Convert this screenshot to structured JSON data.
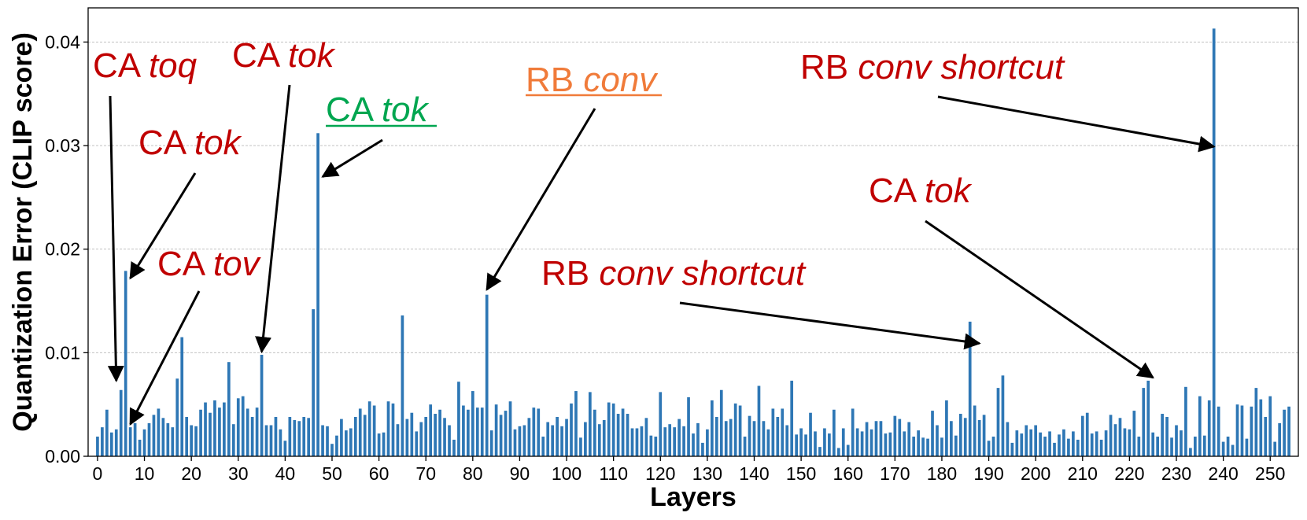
{
  "chart_data": {
    "type": "bar",
    "title": "",
    "xlabel": "Layers",
    "ylabel": "Quantization Error (CLIP score)",
    "xlim": [
      -2,
      256
    ],
    "ylim": [
      0,
      0.0433
    ],
    "xticks": [
      0,
      10,
      20,
      30,
      40,
      50,
      60,
      70,
      80,
      90,
      100,
      110,
      120,
      130,
      140,
      150,
      160,
      170,
      180,
      190,
      200,
      210,
      220,
      230,
      240,
      250
    ],
    "yticks": [
      0.0,
      0.01,
      0.02,
      0.03,
      0.04
    ],
    "ytick_labels": [
      "0.00",
      "0.01",
      "0.02",
      "0.03",
      "0.04"
    ],
    "grid": "horizontal dashed",
    "bar_color": "#2e77b5",
    "x": "layer index 0..255",
    "values": [
      0.0019,
      0.0028,
      0.0045,
      0.0023,
      0.0026,
      0.0064,
      0.0179,
      0.0028,
      0.0032,
      0.0016,
      0.0026,
      0.0032,
      0.004,
      0.0046,
      0.0037,
      0.0032,
      0.0028,
      0.0075,
      0.0115,
      0.0038,
      0.003,
      0.0029,
      0.0045,
      0.0052,
      0.0042,
      0.0054,
      0.0047,
      0.0052,
      0.0091,
      0.0031,
      0.0056,
      0.0058,
      0.0046,
      0.0038,
      0.0047,
      0.0098,
      0.003,
      0.003,
      0.0038,
      0.0026,
      0.0015,
      0.0038,
      0.0035,
      0.0034,
      0.0038,
      0.0037,
      0.0142,
      0.0312,
      0.003,
      0.0029,
      0.0012,
      0.002,
      0.0036,
      0.0025,
      0.0027,
      0.0038,
      0.0046,
      0.004,
      0.0053,
      0.0049,
      0.0022,
      0.0023,
      0.0053,
      0.0051,
      0.0031,
      0.0136,
      0.0036,
      0.0042,
      0.0024,
      0.0033,
      0.0038,
      0.005,
      0.0041,
      0.0045,
      0.0037,
      0.003,
      0.0016,
      0.0072,
      0.0049,
      0.0045,
      0.0063,
      0.0047,
      0.0047,
      0.0156,
      0.0025,
      0.005,
      0.004,
      0.0044,
      0.0053,
      0.0026,
      0.0029,
      0.003,
      0.0037,
      0.0047,
      0.0046,
      0.0019,
      0.0033,
      0.003,
      0.0038,
      0.0029,
      0.0036,
      0.0051,
      0.0063,
      0.0018,
      0.0033,
      0.0062,
      0.0045,
      0.0031,
      0.0035,
      0.0052,
      0.0051,
      0.0041,
      0.0046,
      0.0041,
      0.0027,
      0.0027,
      0.0029,
      0.0037,
      0.002,
      0.0019,
      0.0062,
      0.0028,
      0.0031,
      0.0028,
      0.0036,
      0.0029,
      0.0057,
      0.0022,
      0.0032,
      0.0013,
      0.0026,
      0.0054,
      0.0038,
      0.0064,
      0.0034,
      0.0036,
      0.0051,
      0.0049,
      0.0019,
      0.0039,
      0.0034,
      0.0068,
      0.0034,
      0.0026,
      0.0046,
      0.0038,
      0.0046,
      0.003,
      0.0073,
      0.0021,
      0.0027,
      0.0021,
      0.0042,
      0.0024,
      0.0009,
      0.0027,
      0.0022,
      0.0045,
      0.0008,
      0.0027,
      0.0011,
      0.0046,
      0.0027,
      0.0024,
      0.0033,
      0.0026,
      0.0034,
      0.0034,
      0.0022,
      0.0023,
      0.0039,
      0.0036,
      0.0024,
      0.0033,
      0.0019,
      0.0025,
      0.0018,
      0.0017,
      0.0044,
      0.003,
      0.0018,
      0.0054,
      0.0034,
      0.002,
      0.0041,
      0.0037,
      0.013,
      0.0049,
      0.0035,
      0.004,
      0.0015,
      0.0019,
      0.0066,
      0.0078,
      0.0033,
      0.0013,
      0.0025,
      0.0022,
      0.003,
      0.0026,
      0.003,
      0.0023,
      0.0019,
      0.0024,
      0.0013,
      0.0021,
      0.0026,
      0.0017,
      0.0024,
      0.0016,
      0.0039,
      0.0042,
      0.0022,
      0.0024,
      0.0016,
      0.0025,
      0.004,
      0.0031,
      0.0037,
      0.0027,
      0.0026,
      0.0044,
      0.0019,
      0.0066,
      0.0073,
      0.0023,
      0.0019,
      0.0041,
      0.0038,
      0.0018,
      0.003,
      0.0025,
      0.0067,
      0.0008,
      0.0019,
      0.0058,
      0.002,
      0.0054,
      0.0413,
      0.0048,
      0.0014,
      0.0019,
      0.0011,
      0.005,
      0.0049,
      0.0017,
      0.0048,
      0.0066,
      0.0055,
      0.0038,
      0.0058,
      0.0014,
      0.0032,
      0.0045,
      0.0048
    ],
    "annotations": [
      {
        "id": "a1",
        "prefix": "CA",
        "term": "toq",
        "color": "#c00000",
        "underline": false,
        "target_layer": 4,
        "target_value": 0.0073
      },
      {
        "id": "a2",
        "prefix": "CA",
        "term": "tok",
        "color": "#c00000",
        "underline": false,
        "target_layer": 7,
        "target_value": 0.0172
      },
      {
        "id": "a3",
        "prefix": "CA",
        "term": "tov",
        "color": "#c00000",
        "underline": false,
        "target_layer": 7,
        "target_value": 0.0031
      },
      {
        "id": "a4",
        "prefix": "CA",
        "term": "tok",
        "color": "#c00000",
        "underline": false,
        "target_layer": 35,
        "target_value": 0.0101
      },
      {
        "id": "a5",
        "prefix": "CA",
        "term": "tok",
        "color": "#00a650",
        "underline": true,
        "target_layer": 48,
        "target_value": 0.027
      },
      {
        "id": "a6",
        "prefix": "RB",
        "term": "conv",
        "color": "#f07b3a",
        "underline": true,
        "target_layer": 83,
        "target_value": 0.0161
      },
      {
        "id": "a7",
        "prefix": "RB",
        "term": "conv shortcut",
        "color": "#c00000",
        "underline": false,
        "target_layer": 188,
        "target_value": 0.0109
      },
      {
        "id": "a8",
        "prefix": "CA",
        "term": "tok",
        "color": "#c00000",
        "underline": false,
        "target_layer": 225,
        "target_value": 0.0076
      },
      {
        "id": "a9",
        "prefix": "RB",
        "term": "conv shortcut",
        "color": "#c00000",
        "underline": false,
        "target_layer": 238,
        "target_value": 0.0299
      }
    ]
  }
}
